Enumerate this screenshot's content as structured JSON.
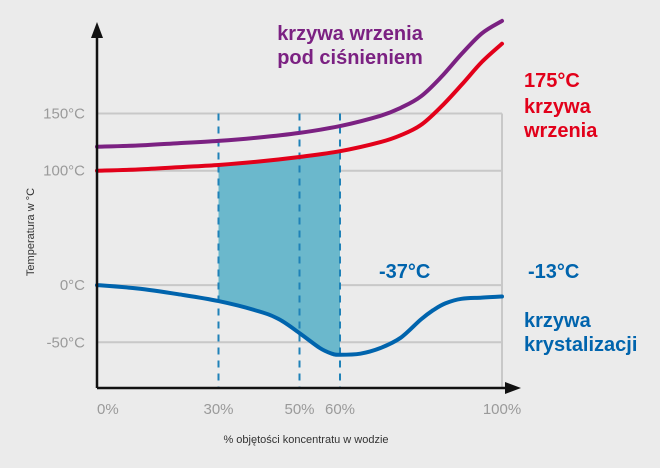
{
  "chart_data": {
    "type": "line",
    "xlabel": "% objętości koncentratu w wodzie",
    "ylabel": "Temperatura w °C",
    "xlim": [
      0,
      100
    ],
    "ylim": [
      -90,
      230
    ],
    "x_ticks": [
      {
        "value": 0,
        "label": "0%"
      },
      {
        "value": 30,
        "label": "30%"
      },
      {
        "value": 50,
        "label": "50%"
      },
      {
        "value": 60,
        "label": "60%"
      },
      {
        "value": 100,
        "label": "100%"
      }
    ],
    "y_ticks": [
      {
        "value": 150,
        "label": "150°C"
      },
      {
        "value": 100,
        "label": "100°C"
      },
      {
        "value": 0,
        "label": "0°C"
      },
      {
        "value": -50,
        "label": "-50°C"
      }
    ],
    "vertical_markers": [
      30,
      50,
      60
    ],
    "shaded_region": {
      "x_from": 30,
      "x_to": 60
    },
    "series": [
      {
        "name": "krzywa wrzenia pod ciśnieniem",
        "color": "#7b2182",
        "x": [
          0,
          10,
          20,
          30,
          40,
          50,
          60,
          70,
          75,
          80,
          85,
          90,
          95,
          100
        ],
        "y": [
          121,
          122,
          124,
          126,
          129,
          133,
          139,
          148,
          155,
          165,
          182,
          202,
          220,
          231
        ]
      },
      {
        "name": "krzywa wrzenia",
        "color": "#e2001a",
        "x": [
          0,
          10,
          20,
          30,
          40,
          50,
          60,
          70,
          75,
          80,
          85,
          90,
          95,
          100
        ],
        "y": [
          100,
          101,
          103,
          105,
          108,
          112,
          117,
          125,
          131,
          140,
          156,
          175,
          195,
          211
        ]
      },
      {
        "name": "krzywa krystalizacji",
        "color": "#0064ad",
        "x": [
          0,
          10,
          20,
          30,
          40,
          45,
          50,
          55,
          58,
          60,
          65,
          70,
          75,
          80,
          83,
          86,
          90,
          95,
          100
        ],
        "y": [
          0,
          -3,
          -8,
          -14,
          -23,
          -30,
          -42,
          -55,
          -60,
          -61,
          -60,
          -55,
          -46,
          -30,
          -22,
          -16,
          -12,
          -11,
          -10
        ]
      }
    ],
    "annotations": {
      "pressure_label_line1": "krzywa wrzenia",
      "pressure_label_line2": "pod ciśnieniem",
      "boiling_temp": "175°C",
      "boiling_label_line1": "krzywa",
      "boiling_label_line2": "wrzenia",
      "eutectic_temp": "-37°C",
      "cryst_temp": "-13°C",
      "cryst_label_line1": "krzywa",
      "cryst_label_line2": "krystalizacji"
    },
    "colors": {
      "shade": "#6bb8cc",
      "marker": "#1f82b8",
      "grid": "#c8c8c8",
      "tick": "#9a9a9a",
      "axis": "#111111",
      "purple": "#7b2182",
      "red": "#e2001a",
      "blue": "#0064ad"
    },
    "grid": true,
    "legend": "none"
  }
}
